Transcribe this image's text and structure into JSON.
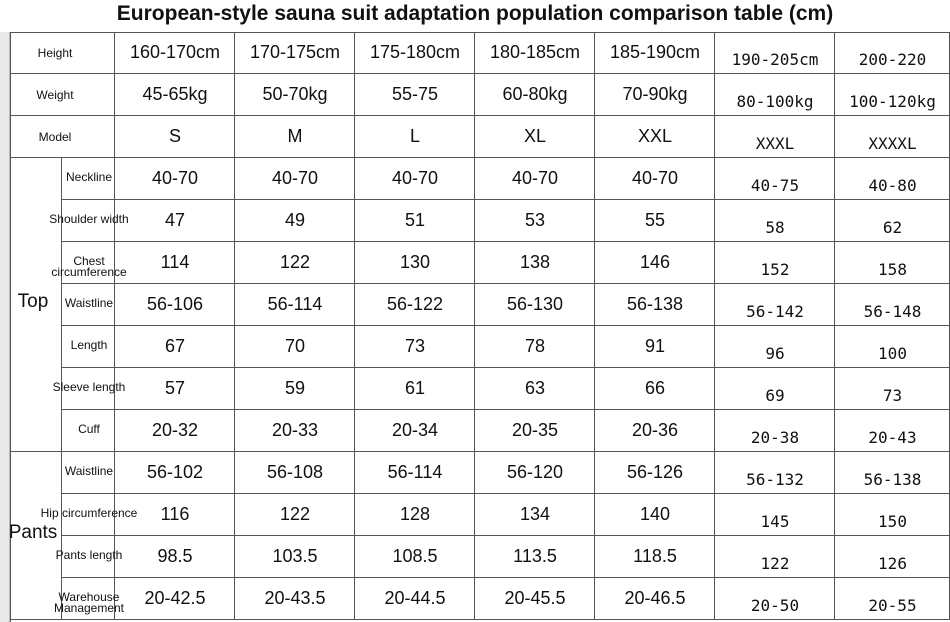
{
  "title": "European-style sauna suit adaptation population comparison table (cm)",
  "table": {
    "header_rows": [
      {
        "label": "Height",
        "cells": [
          "160-170cm",
          "170-175cm",
          "175-180cm",
          "180-185cm",
          "185-190cm",
          "190-205cm",
          "200-220"
        ]
      },
      {
        "label": "Weight",
        "cells": [
          "45-65kg",
          "50-70kg",
          "55-75",
          "60-80kg",
          "70-90kg",
          "80-100kg",
          "100-120kg"
        ]
      },
      {
        "label": "Model",
        "cells": [
          "S",
          "M",
          "L",
          "XL",
          "XXL",
          "XXXL",
          "XXXXL"
        ]
      }
    ],
    "groups": [
      {
        "name": "Top",
        "rows": [
          {
            "label": "Neckline",
            "cells": [
              "40-70",
              "40-70",
              "40-70",
              "40-70",
              "40-70",
              "40-75",
              "40-80"
            ]
          },
          {
            "label": "Shoulder width",
            "cells": [
              "47",
              "49",
              "51",
              "53",
              "55",
              "58",
              "62"
            ]
          },
          {
            "label": "Chest circumference",
            "cells": [
              "114",
              "122",
              "130",
              "138",
              "146",
              "152",
              "158"
            ]
          },
          {
            "label": "Waistline",
            "cells": [
              "56-106",
              "56-114",
              "56-122",
              "56-130",
              "56-138",
              "56-142",
              "56-148"
            ]
          },
          {
            "label": "Length",
            "cells": [
              "67",
              "70",
              "73",
              "78",
              "91",
              "96",
              "100"
            ]
          },
          {
            "label": "Sleeve length",
            "cells": [
              "57",
              "59",
              "61",
              "63",
              "66",
              "69",
              "73"
            ]
          },
          {
            "label": "Cuff",
            "cells": [
              "20-32",
              "20-33",
              "20-34",
              "20-35",
              "20-36",
              "20-38",
              "20-43"
            ]
          }
        ]
      },
      {
        "name": "Pants",
        "rows": [
          {
            "label": "Waistline",
            "cells": [
              "56-102",
              "56-108",
              "56-114",
              "56-120",
              "56-126",
              "56-132",
              "56-138"
            ]
          },
          {
            "label": "Hip circumference",
            "cells": [
              "116",
              "122",
              "128",
              "134",
              "140",
              "145",
              "150"
            ]
          },
          {
            "label": "Pants length",
            "cells": [
              "98.5",
              "103.5",
              "108.5",
              "113.5",
              "118.5",
              "122",
              "126"
            ]
          },
          {
            "label": "Warehouse Management",
            "cells": [
              "20-42.5",
              "20-43.5",
              "20-44.5",
              "20-45.5",
              "20-46.5",
              "20-50",
              "20-55"
            ]
          }
        ]
      }
    ]
  }
}
